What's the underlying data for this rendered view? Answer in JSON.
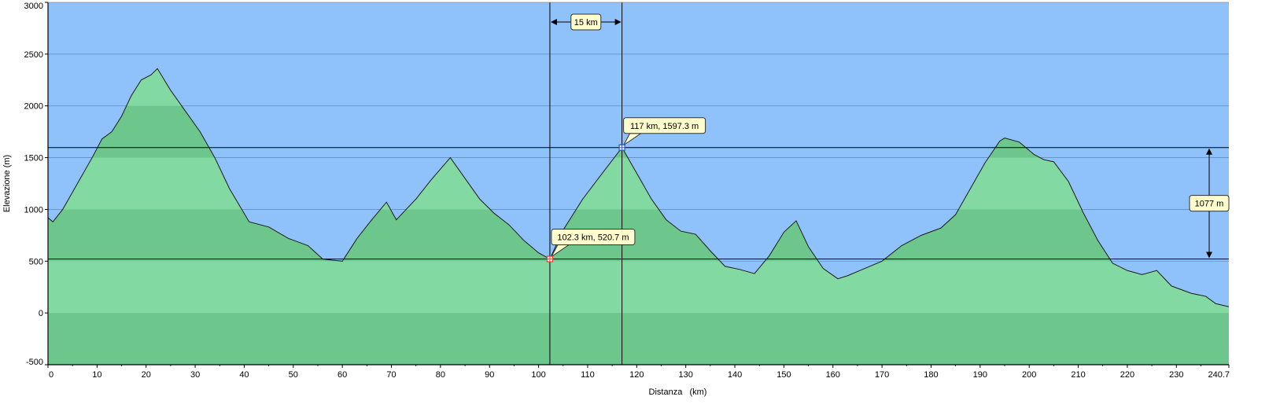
{
  "colors": {
    "background": "#ffffff",
    "sky": "#8fc1fa",
    "terrain_light": "#82d9a2",
    "terrain_dark": "#6dc78c",
    "gridline": "#5f8fbf",
    "callout_fill": "#fffccd"
  },
  "chart_data": {
    "type": "area",
    "title": "",
    "xlabel": "Distanza   (km)",
    "ylabel": "Elevazione (m)",
    "xlim": [
      0,
      240.7
    ],
    "ylim": [
      -500,
      3000
    ],
    "x_ticks": [
      "0",
      "10",
      "20",
      "30",
      "40",
      "50",
      "60",
      "70",
      "80",
      "90",
      "100",
      "110",
      "120",
      "130",
      "140",
      "150",
      "160",
      "170",
      "180",
      "190",
      "200",
      "210",
      "220",
      "230",
      "240.7"
    ],
    "y_ticks": [
      "-500",
      "0",
      "500",
      "1000",
      "1500",
      "2000",
      "2500",
      "3000"
    ],
    "grid": true,
    "series": [
      {
        "x": [
          0,
          1,
          3,
          6,
          9,
          11,
          13,
          15,
          17,
          19,
          21,
          22.3,
          25,
          28,
          31,
          34,
          37,
          41,
          45,
          49,
          53,
          56,
          60,
          63,
          66,
          69,
          71,
          73,
          75,
          78,
          82,
          85,
          88,
          91,
          94,
          97,
          100,
          102.3,
          105,
          109,
          113,
          117,
          120,
          123,
          126,
          129,
          132,
          135,
          138,
          141,
          144,
          147,
          150,
          152.5,
          155,
          158,
          161,
          163,
          166,
          170,
          174,
          178,
          182,
          185,
          188,
          191,
          194,
          195,
          198,
          201,
          203,
          205,
          208,
          211,
          214,
          217,
          220,
          223,
          226,
          229,
          233,
          236,
          238,
          240.7
        ],
        "y": [
          920,
          880,
          1000,
          1250,
          1500,
          1680,
          1750,
          1900,
          2100,
          2250,
          2300,
          2360,
          2150,
          1950,
          1750,
          1500,
          1200,
          880,
          830,
          720,
          650,
          520,
          500,
          720,
          900,
          1070,
          900,
          1000,
          1100,
          1280,
          1500,
          1300,
          1100,
          960,
          850,
          700,
          580,
          520.7,
          800,
          1100,
          1350,
          1597.3,
          1350,
          1100,
          900,
          790,
          760,
          600,
          450,
          420,
          380,
          550,
          780,
          890,
          640,
          430,
          330,
          360,
          420,
          500,
          650,
          750,
          820,
          950,
          1200,
          1450,
          1660,
          1690,
          1650,
          1530,
          1480,
          1460,
          1270,
          970,
          700,
          480,
          410,
          370,
          410,
          260,
          190,
          160,
          90,
          60
        ]
      }
    ],
    "markers": [
      {
        "x": 102.3,
        "y": 520.7,
        "label": "102.3 km, 520.7 m",
        "color": "#ff3b30"
      },
      {
        "x": 117,
        "y": 1597.3,
        "label": "117 km, 1597.3 m",
        "color": "#2f5bd1"
      }
    ],
    "distance_annotation": "15 km",
    "elevation_annotation": "1077 m"
  }
}
